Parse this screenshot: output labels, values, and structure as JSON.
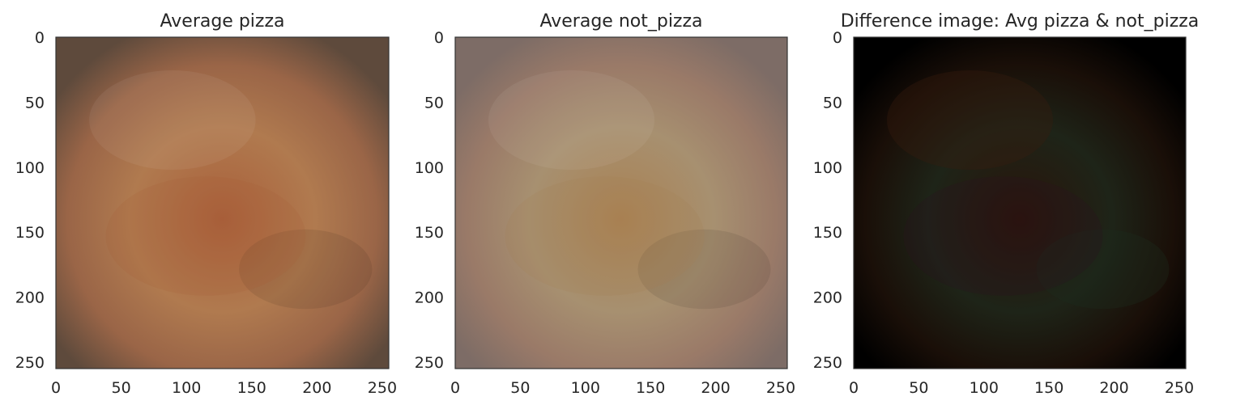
{
  "chart_data": [
    {
      "type": "heatmap",
      "title": "Average pizza",
      "xlabel": "",
      "ylabel": "",
      "xlim": [
        0,
        255
      ],
      "ylim": [
        255,
        0
      ],
      "xticks": [
        0,
        50,
        100,
        150,
        200,
        250
      ],
      "yticks": [
        0,
        50,
        100,
        150,
        200,
        250
      ],
      "xtick_labels": [
        "0",
        "50",
        "100",
        "150",
        "200",
        "250"
      ],
      "ytick_labels": [
        "0",
        "50",
        "100",
        "150",
        "200",
        "250"
      ],
      "grid": false,
      "image_palette": {
        "edge": "#5e4a3c",
        "mid": "#9a6547",
        "center": "#a95f3a",
        "highlight": "#b07a4f"
      }
    },
    {
      "type": "heatmap",
      "title": "Average not_pizza",
      "xlabel": "",
      "ylabel": "",
      "xlim": [
        0,
        255
      ],
      "ylim": [
        255,
        0
      ],
      "xticks": [
        0,
        50,
        100,
        150,
        200,
        250
      ],
      "yticks": [
        0,
        50,
        100,
        150,
        200,
        250
      ],
      "xtick_labels": [
        "0",
        "50",
        "100",
        "150",
        "200",
        "250"
      ],
      "ytick_labels": [
        "0",
        "50",
        "100",
        "150",
        "200",
        "250"
      ],
      "grid": false,
      "image_palette": {
        "edge": "#7d6c66",
        "mid": "#9a7a68",
        "center": "#a98152",
        "highlight": "#a79070"
      }
    },
    {
      "type": "heatmap",
      "title": "Difference image: Avg pizza & not_pizza",
      "xlabel": "",
      "ylabel": "",
      "xlim": [
        0,
        255
      ],
      "ylim": [
        255,
        0
      ],
      "xticks": [
        0,
        50,
        100,
        150,
        200,
        250
      ],
      "yticks": [
        0,
        50,
        100,
        150,
        200,
        250
      ],
      "xtick_labels": [
        "0",
        "50",
        "100",
        "150",
        "200",
        "250"
      ],
      "ytick_labels": [
        "0",
        "50",
        "100",
        "150",
        "200",
        "250"
      ],
      "grid": false,
      "image_palette": {
        "edge": "#000000",
        "mid": "#1a0f08",
        "center": "#2a140a",
        "highlight": "#1e2418"
      }
    }
  ]
}
